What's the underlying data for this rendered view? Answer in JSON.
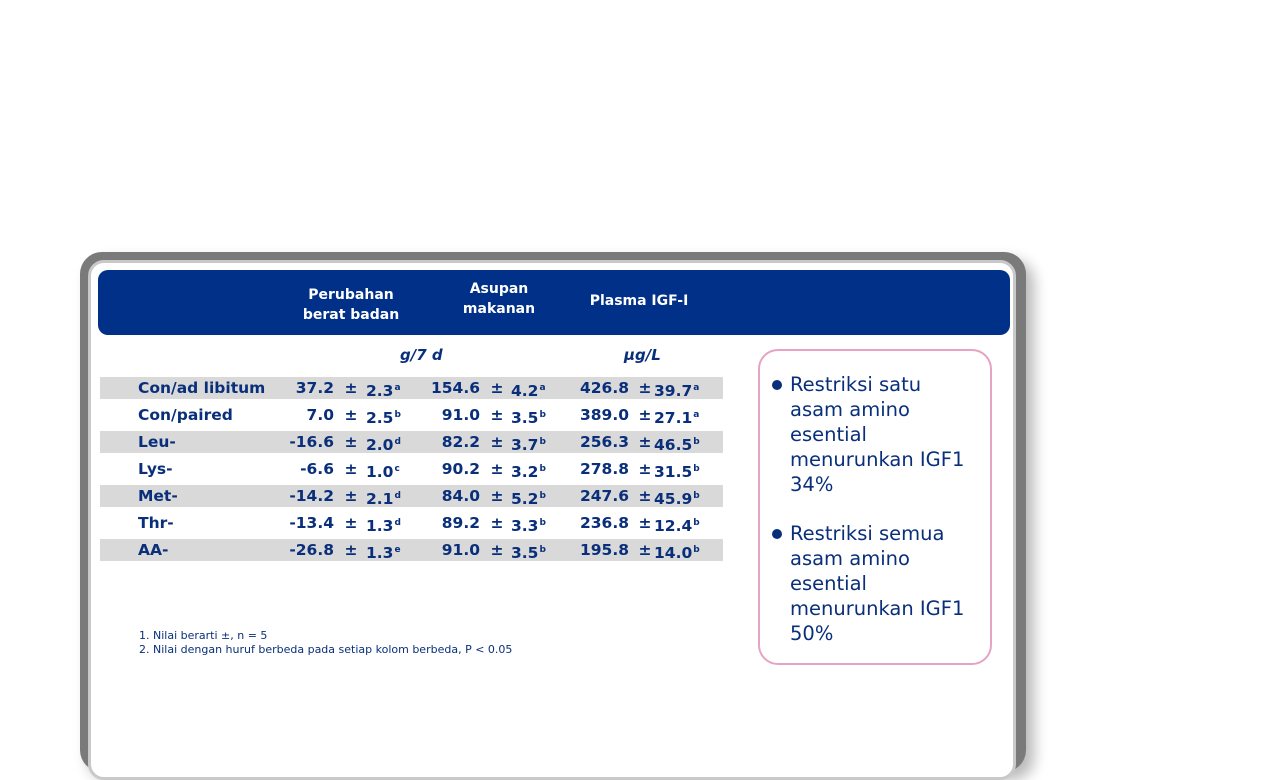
{
  "table": {
    "headers": {
      "col1": [
        "Perubahan",
        "berat badan"
      ],
      "col2": [
        "Asupan",
        "makanan"
      ],
      "col3": [
        "Plasma IGF-I"
      ]
    },
    "units": {
      "col12": "g/7 d",
      "col3": "µg/L"
    },
    "rows": [
      {
        "label": "Con/ad libitum",
        "w": "37.2",
        "wsd": "2.3",
        "wsup": "a",
        "f": "154.6",
        "fsd": "4.2",
        "fsup": "a",
        "p": "426.8",
        "psd": "39.7",
        "psup": "a"
      },
      {
        "label": "Con/paired",
        "w": "7.0",
        "wsd": "2.5",
        "wsup": "b",
        "f": "91.0",
        "fsd": "3.5",
        "fsup": "b",
        "p": "389.0",
        "psd": "27.1",
        "psup": "a"
      },
      {
        "label": "Leu-",
        "w": "-16.6",
        "wsd": "2.0",
        "wsup": "d",
        "f": "82.2",
        "fsd": "3.7",
        "fsup": "b",
        "p": "256.3",
        "psd": "46.5",
        "psup": "b"
      },
      {
        "label": "Lys-",
        "w": "-6.6",
        "wsd": "1.0",
        "wsup": "c",
        "f": "90.2",
        "fsd": "3.2",
        "fsup": "b",
        "p": "278.8",
        "psd": "31.5",
        "psup": "b"
      },
      {
        "label": "Met-",
        "w": "-14.2",
        "wsd": "2.1",
        "wsup": "d",
        "f": "84.0",
        "fsd": "5.2",
        "fsup": "b",
        "p": "247.6",
        "psd": "45.9",
        "psup": "b"
      },
      {
        "label": "Thr-",
        "w": "-13.4",
        "wsd": "1.3",
        "wsup": "d",
        "f": "89.2",
        "fsd": "3.3",
        "fsup": "b",
        "p": "236.8",
        "psd": "12.4",
        "psup": "b"
      },
      {
        "label": "AA-",
        "w": "-26.8",
        "wsd": "1.3",
        "wsup": "e",
        "f": "91.0",
        "fsd": "3.5",
        "fsup": "b",
        "p": "195.8",
        "psd": "14.0",
        "psup": "b"
      }
    ],
    "pm": "±"
  },
  "footnotes": [
    "1.  Nilai berarti ±, n = 5",
    "2.  Nilai dengan huruf berbeda pada setiap kolom berbeda, P < 0.05"
  ],
  "callout": {
    "bullets": [
      "Restriksi satu asam amino esential menurunkan IGF1 34%",
      "Restriksi semua asam amino esential menurunkan IGF1 50%"
    ]
  },
  "colors": {
    "navy": "#003087",
    "text": "#0a2f7a",
    "shade": "#d9d9d9",
    "callout_border": "#e6a3c3"
  }
}
